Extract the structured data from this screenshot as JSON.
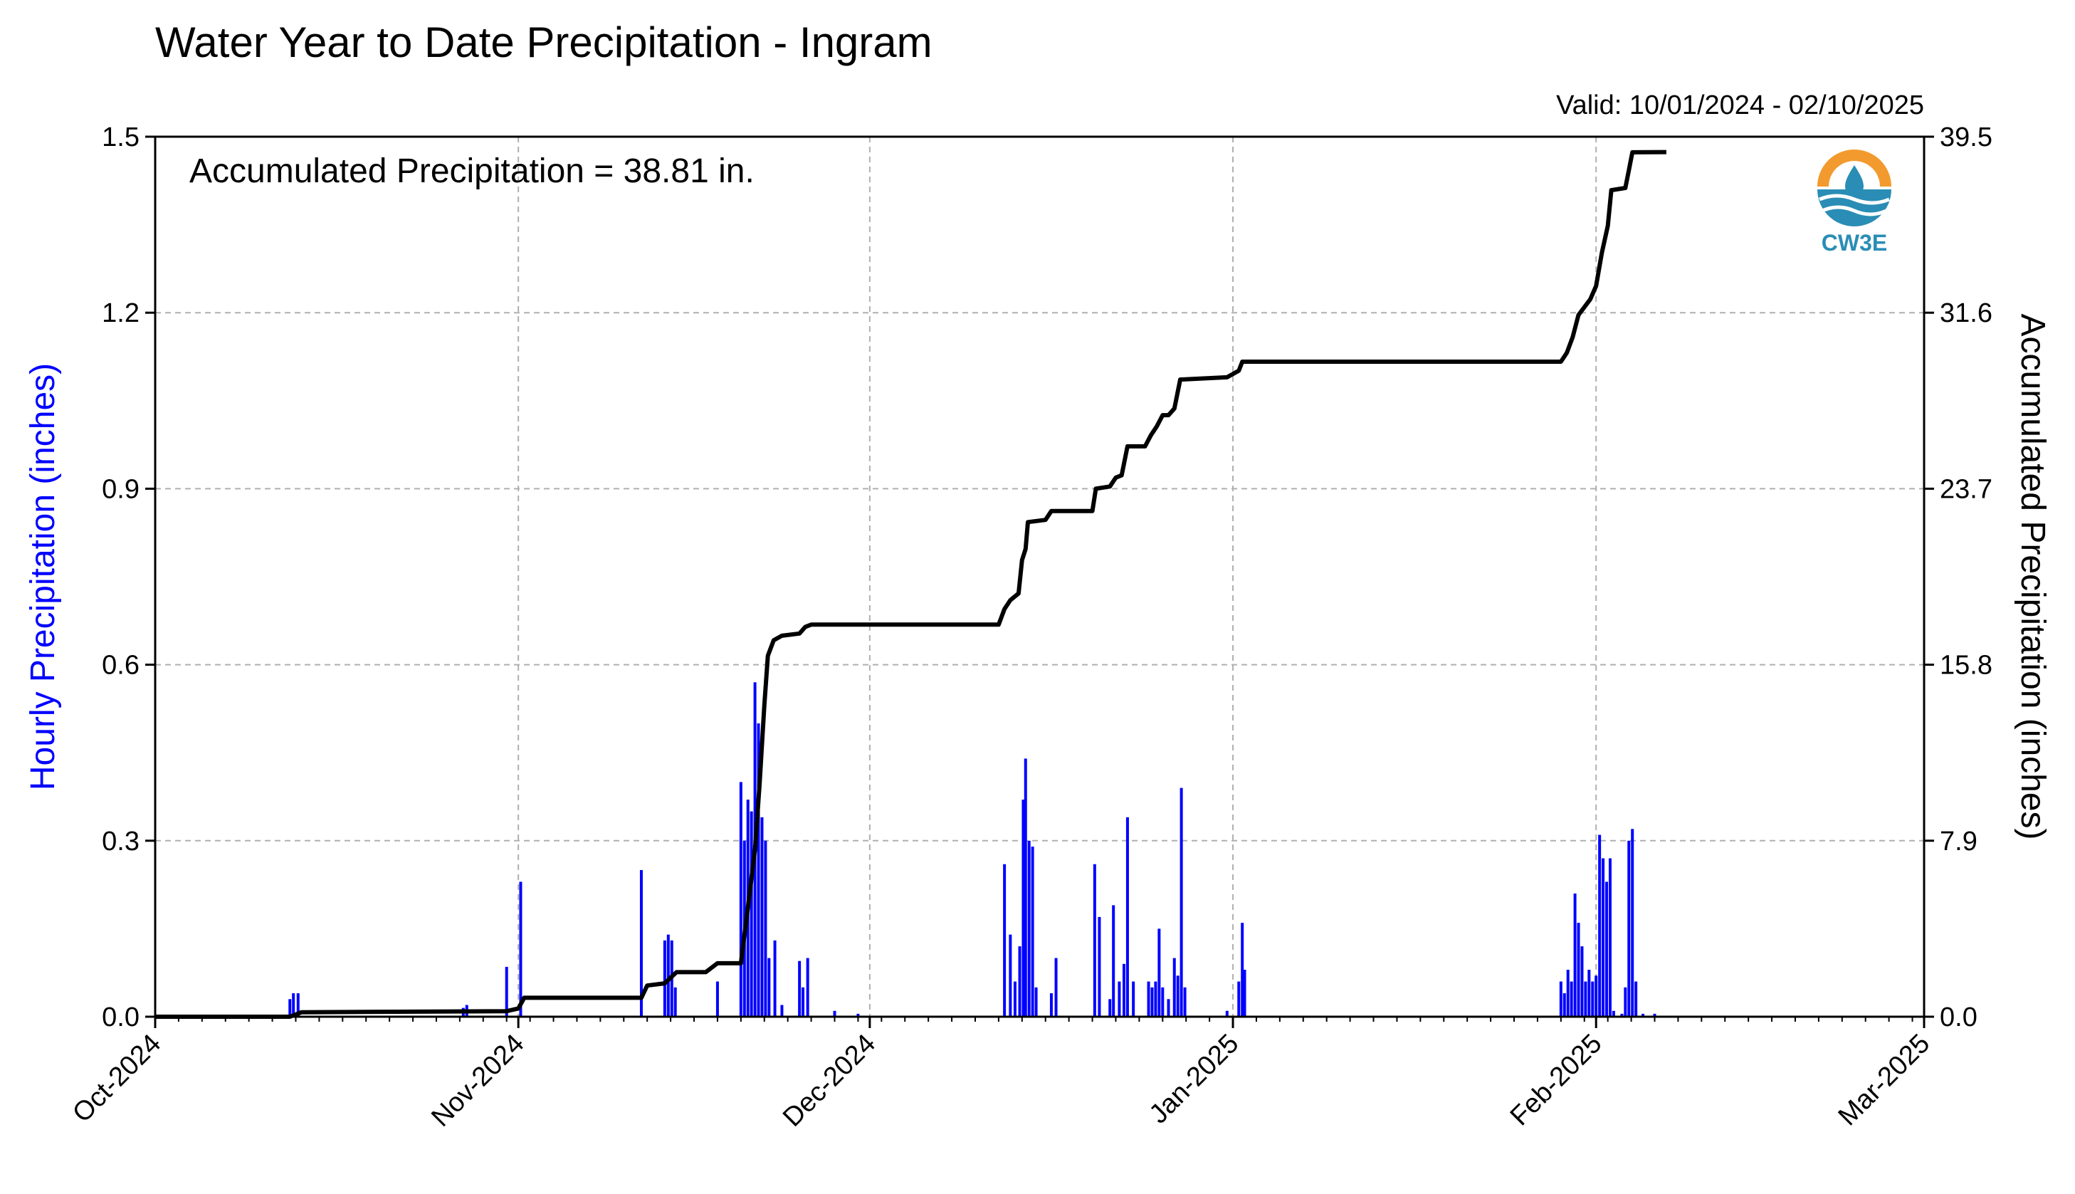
{
  "chart_data": {
    "type": "bar+line",
    "title": "Water Year to Date Precipitation - Ingram",
    "valid_label": "Valid: 10/01/2024 - 02/10/2025",
    "annotation": "Accumulated Precipitation = 38.81 in.",
    "logo_text": "CW3E",
    "y_left_label": "Hourly Precipitation (inches)",
    "y_right_label": "Accumulated Precipitation (inches)",
    "y_left_ticks": [
      "0.0",
      "0.3",
      "0.6",
      "0.9",
      "1.2",
      "1.5"
    ],
    "y_right_ticks": [
      "0.0",
      "7.9",
      "15.8",
      "23.7",
      "31.6",
      "39.5"
    ],
    "y_left_lim": [
      0,
      1.5
    ],
    "y_right_lim": [
      0,
      39.5
    ],
    "x_ticks": [
      "Oct-2024",
      "Nov-2024",
      "Dec-2024",
      "Jan-2025",
      "Feb-2025",
      "Mar-2025"
    ],
    "x_range_days": [
      0,
      151
    ],
    "x_tick_days": [
      0,
      31,
      61,
      92,
      123,
      151
    ],
    "grid": true,
    "colors": {
      "hourly": "#0000ff",
      "accumulated": "#000000",
      "grid": "#b0b0b0",
      "logo_orange": "#f39a2e",
      "logo_blue": "#2a8db5"
    },
    "hourly_bars": [
      [
        11.5,
        0.03
      ],
      [
        11.8,
        0.04
      ],
      [
        12.2,
        0.04
      ],
      [
        26.3,
        0.015
      ],
      [
        26.6,
        0.02
      ],
      [
        30.0,
        0.085
      ],
      [
        31.2,
        0.23
      ],
      [
        41.5,
        0.25
      ],
      [
        43.5,
        0.13
      ],
      [
        43.8,
        0.14
      ],
      [
        44.1,
        0.13
      ],
      [
        44.4,
        0.05
      ],
      [
        48.0,
        0.06
      ],
      [
        50.0,
        0.4
      ],
      [
        50.3,
        0.3
      ],
      [
        50.6,
        0.37
      ],
      [
        50.9,
        0.35
      ],
      [
        51.2,
        0.57
      ],
      [
        51.5,
        0.5
      ],
      [
        51.8,
        0.34
      ],
      [
        52.1,
        0.3
      ],
      [
        52.4,
        0.1
      ],
      [
        52.9,
        0.13
      ],
      [
        53.5,
        0.02
      ],
      [
        55.0,
        0.095
      ],
      [
        55.3,
        0.05
      ],
      [
        55.7,
        0.1
      ],
      [
        58.0,
        0.01
      ],
      [
        60.0,
        0.005
      ],
      [
        72.5,
        0.26
      ],
      [
        73.0,
        0.14
      ],
      [
        73.4,
        0.06
      ],
      [
        73.8,
        0.12
      ],
      [
        74.1,
        0.37
      ],
      [
        74.3,
        0.44
      ],
      [
        74.6,
        0.3
      ],
      [
        74.9,
        0.29
      ],
      [
        75.2,
        0.05
      ],
      [
        76.5,
        0.04
      ],
      [
        76.9,
        0.1
      ],
      [
        80.2,
        0.26
      ],
      [
        80.6,
        0.17
      ],
      [
        81.5,
        0.03
      ],
      [
        81.8,
        0.19
      ],
      [
        82.3,
        0.06
      ],
      [
        82.7,
        0.09
      ],
      [
        83.0,
        0.34
      ],
      [
        83.5,
        0.06
      ],
      [
        84.8,
        0.06
      ],
      [
        85.1,
        0.05
      ],
      [
        85.4,
        0.06
      ],
      [
        85.7,
        0.15
      ],
      [
        86.0,
        0.05
      ],
      [
        86.5,
        0.03
      ],
      [
        87.0,
        0.1
      ],
      [
        87.3,
        0.07
      ],
      [
        87.6,
        0.39
      ],
      [
        87.9,
        0.05
      ],
      [
        91.5,
        0.01
      ],
      [
        92.5,
        0.06
      ],
      [
        92.8,
        0.16
      ],
      [
        93.0,
        0.08
      ],
      [
        120.0,
        0.06
      ],
      [
        120.3,
        0.04
      ],
      [
        120.6,
        0.08
      ],
      [
        120.9,
        0.06
      ],
      [
        121.2,
        0.21
      ],
      [
        121.5,
        0.16
      ],
      [
        121.8,
        0.12
      ],
      [
        122.1,
        0.06
      ],
      [
        122.4,
        0.08
      ],
      [
        122.7,
        0.06
      ],
      [
        123.0,
        0.07
      ],
      [
        123.3,
        0.31
      ],
      [
        123.6,
        0.27
      ],
      [
        123.9,
        0.23
      ],
      [
        124.2,
        0.27
      ],
      [
        124.5,
        0.01
      ],
      [
        125.2,
        0.005
      ],
      [
        125.5,
        0.05
      ],
      [
        125.8,
        0.3
      ],
      [
        126.1,
        0.32
      ],
      [
        126.4,
        0.06
      ],
      [
        127.0,
        0.005
      ],
      [
        128.0,
        0.005
      ]
    ],
    "accumulated_steps": [
      [
        0.0,
        0.0
      ],
      [
        11.5,
        0.0
      ],
      [
        12.5,
        0.2
      ],
      [
        30.0,
        0.25
      ],
      [
        31.0,
        0.37
      ],
      [
        31.5,
        0.85
      ],
      [
        41.5,
        0.85
      ],
      [
        42.0,
        1.4
      ],
      [
        43.5,
        1.5
      ],
      [
        44.5,
        2.0
      ],
      [
        47.0,
        2.0
      ],
      [
        48.0,
        2.4
      ],
      [
        50.0,
        2.4
      ],
      [
        50.5,
        4.5
      ],
      [
        51.2,
        7.5
      ],
      [
        51.6,
        10.5
      ],
      [
        52.0,
        14.0
      ],
      [
        52.3,
        16.2
      ],
      [
        52.8,
        16.9
      ],
      [
        53.5,
        17.1
      ],
      [
        55.0,
        17.2
      ],
      [
        55.5,
        17.5
      ],
      [
        56.0,
        17.6
      ],
      [
        72.0,
        17.6
      ],
      [
        72.5,
        18.3
      ],
      [
        73.0,
        18.7
      ],
      [
        73.7,
        19.0
      ],
      [
        74.0,
        20.5
      ],
      [
        74.3,
        21.0
      ],
      [
        74.5,
        22.2
      ],
      [
        76.0,
        22.3
      ],
      [
        76.5,
        22.7
      ],
      [
        80.0,
        22.7
      ],
      [
        80.3,
        23.7
      ],
      [
        81.5,
        23.8
      ],
      [
        82.0,
        24.2
      ],
      [
        82.5,
        24.3
      ],
      [
        83.0,
        25.6
      ],
      [
        84.5,
        25.6
      ],
      [
        85.0,
        26.1
      ],
      [
        85.5,
        26.5
      ],
      [
        86.0,
        27.0
      ],
      [
        86.5,
        27.0
      ],
      [
        87.0,
        27.3
      ],
      [
        87.5,
        28.6
      ],
      [
        91.5,
        28.7
      ],
      [
        92.5,
        29.0
      ],
      [
        92.8,
        29.4
      ],
      [
        120.0,
        29.4
      ],
      [
        120.5,
        29.8
      ],
      [
        121.0,
        30.5
      ],
      [
        121.5,
        31.5
      ],
      [
        122.5,
        32.2
      ],
      [
        123.0,
        32.8
      ],
      [
        123.5,
        34.3
      ],
      [
        124.0,
        35.5
      ],
      [
        124.3,
        37.1
      ],
      [
        125.5,
        37.2
      ],
      [
        125.8,
        38.0
      ],
      [
        126.1,
        38.8
      ],
      [
        129.0,
        38.81
      ]
    ]
  }
}
